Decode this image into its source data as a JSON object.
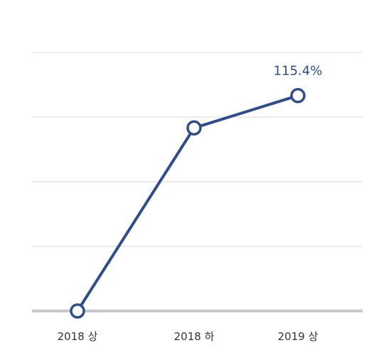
{
  "chart_data": {
    "type": "line",
    "categories": [
      "2018 상",
      "2018 하",
      "2019 상"
    ],
    "series": [
      {
        "values": [
          0,
          85,
          100
        ]
      }
    ],
    "data_labels": [
      "",
      "",
      "115.4%"
    ],
    "ylim": [
      0,
      120
    ],
    "grid": true,
    "colors": {
      "line": "#2f4d8a",
      "marker_fill": "#ffffff",
      "grid": "#d9d9d9",
      "baseline": "#c8c8d0"
    }
  }
}
